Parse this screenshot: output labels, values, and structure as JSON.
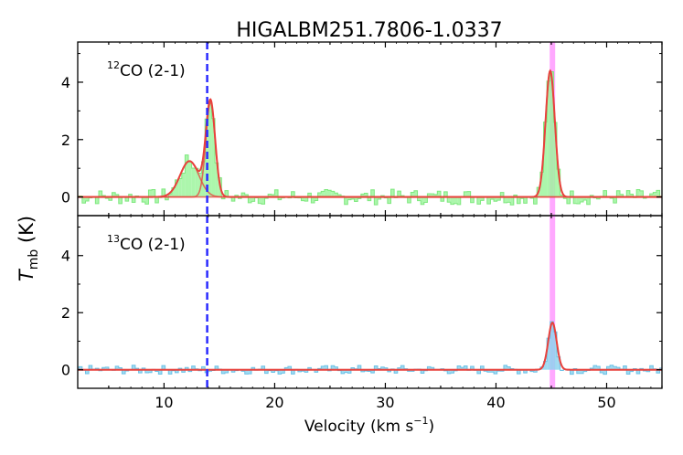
{
  "chart_data": {
    "type": "line",
    "title": "HIGALBM251.7806-1.0337",
    "xlabel": "Velocity (km s",
    "xlabel_sup": "−1",
    "xlabel_end": ")",
    "ylabel_main": "T",
    "ylabel_sub": "mb",
    "ylabel_unit": " (K)",
    "xlim": [
      2.2,
      55
    ],
    "x_ticks": [
      10,
      20,
      30,
      40,
      50
    ],
    "reference_velocity": 13.9,
    "highlight_velocity": 45.1,
    "colors": {
      "co12_fill": "#9ef59e",
      "co12_edge": "#7fe87f",
      "co13_fill": "#8ed4ef",
      "co13_edge": "#6ec2e6",
      "fit": "#e8413c",
      "ref_line": "#2b2bff",
      "highlight": "#ff99ff"
    },
    "panels": [
      {
        "id": "co12",
        "label_sup": "12",
        "label": "CO (2-1)",
        "ylim": [
          -0.65,
          5.4
        ],
        "y_ticks": [
          0,
          2,
          4
        ],
        "components": [
          {
            "center": 12.3,
            "amplitude": 1.25,
            "sigma": 0.85
          },
          {
            "center": 14.2,
            "amplitude": 3.3,
            "sigma": 0.42
          },
          {
            "center": 44.9,
            "amplitude": 4.4,
            "sigma": 0.42
          }
        ]
      },
      {
        "id": "co13",
        "label_sup": "13",
        "label": "CO (2-1)",
        "ylim": [
          -0.65,
          5.4
        ],
        "y_ticks": [
          0,
          2,
          4
        ],
        "components": [
          {
            "center": 45.1,
            "amplitude": 1.65,
            "sigma": 0.38
          }
        ]
      }
    ]
  }
}
